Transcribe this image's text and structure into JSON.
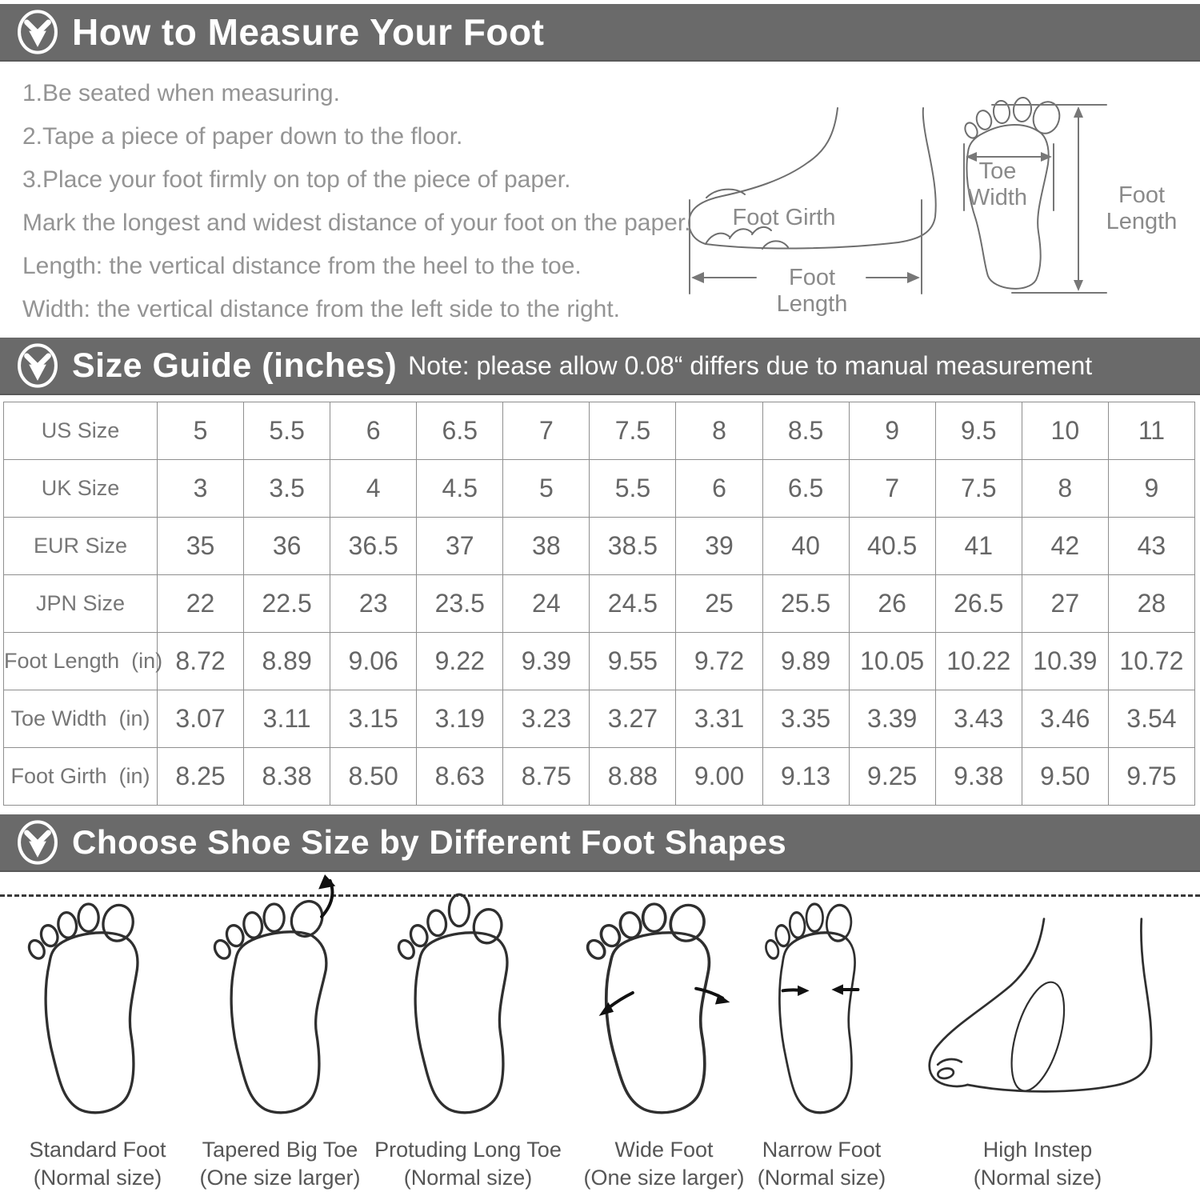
{
  "palette": {
    "header_bg": "#6a6a6a",
    "header_text": "#ffffff",
    "instruction_text": "#949494",
    "table_text": "#666666",
    "illustration_line": "#2f2f2f"
  },
  "measure_section": {
    "title": "How to Measure Your Foot",
    "instructions": [
      "1.Be seated when measuring.",
      "2.Tape a piece of paper down to the floor.",
      "3.Place your foot firmly on top of the piece of paper.",
      "Mark the longest and widest distance of your foot on the paper.",
      "Length: the vertical distance from the heel to the toe.",
      "Width: the vertical distance from the left side to the right."
    ],
    "side_diagram": {
      "girth_label": "Foot Girth",
      "length_label": "Foot Length"
    },
    "top_diagram": {
      "toe_width_line1": "Toe",
      "toe_width_line2": "Width",
      "length_label": "Foot Length"
    }
  },
  "size_guide_section": {
    "title": "Size Guide (inches)",
    "note": "Note: please allow 0.08“ differs due to manual measurement"
  },
  "size_table": {
    "rows": [
      {
        "label": "US Size",
        "values": [
          "5",
          "5.5",
          "6",
          "6.5",
          "7",
          "7.5",
          "8",
          "8.5",
          "9",
          "9.5",
          "10",
          "11"
        ]
      },
      {
        "label": "UK Size",
        "values": [
          "3",
          "3.5",
          "4",
          "4.5",
          "5",
          "5.5",
          "6",
          "6.5",
          "7",
          "7.5",
          "8",
          "9"
        ]
      },
      {
        "label": "EUR Size",
        "values": [
          "35",
          "36",
          "36.5",
          "37",
          "38",
          "38.5",
          "39",
          "40",
          "40.5",
          "41",
          "42",
          "43"
        ]
      },
      {
        "label": "JPN Size",
        "values": [
          "22",
          "22.5",
          "23",
          "23.5",
          "24",
          "24.5",
          "25",
          "25.5",
          "26",
          "26.5",
          "27",
          "28"
        ]
      },
      {
        "label": "Foot Length  (in)",
        "values": [
          "8.72",
          "8.89",
          "9.06",
          "9.22",
          "9.39",
          "9.55",
          "9.72",
          "9.89",
          "10.05",
          "10.22",
          "10.39",
          "10.72"
        ]
      },
      {
        "label": "Toe Width  (in)",
        "values": [
          "3.07",
          "3.11",
          "3.15",
          "3.19",
          "3.23",
          "3.27",
          "3.31",
          "3.35",
          "3.39",
          "3.43",
          "3.46",
          "3.54"
        ]
      },
      {
        "label": "Foot Girth  (in)",
        "values": [
          "8.25",
          "8.38",
          "8.50",
          "8.63",
          "8.75",
          "8.88",
          "9.00",
          "9.13",
          "9.25",
          "9.38",
          "9.50",
          "9.75"
        ]
      }
    ]
  },
  "shapes_section": {
    "title": "Choose Shoe Size by Different Foot Shapes",
    "items": [
      {
        "name": "Standard Foot",
        "sizing": "(Normal size)"
      },
      {
        "name": "Tapered Big Toe",
        "sizing": "(One size larger)"
      },
      {
        "name": "Protuding Long Toe",
        "sizing": "(Normal size)"
      },
      {
        "name": "Wide Foot",
        "sizing": "(One size larger)"
      },
      {
        "name": "Narrow Foot",
        "sizing": "(Normal size)"
      },
      {
        "name": "High Instep",
        "sizing": "(Normal size)"
      }
    ]
  }
}
